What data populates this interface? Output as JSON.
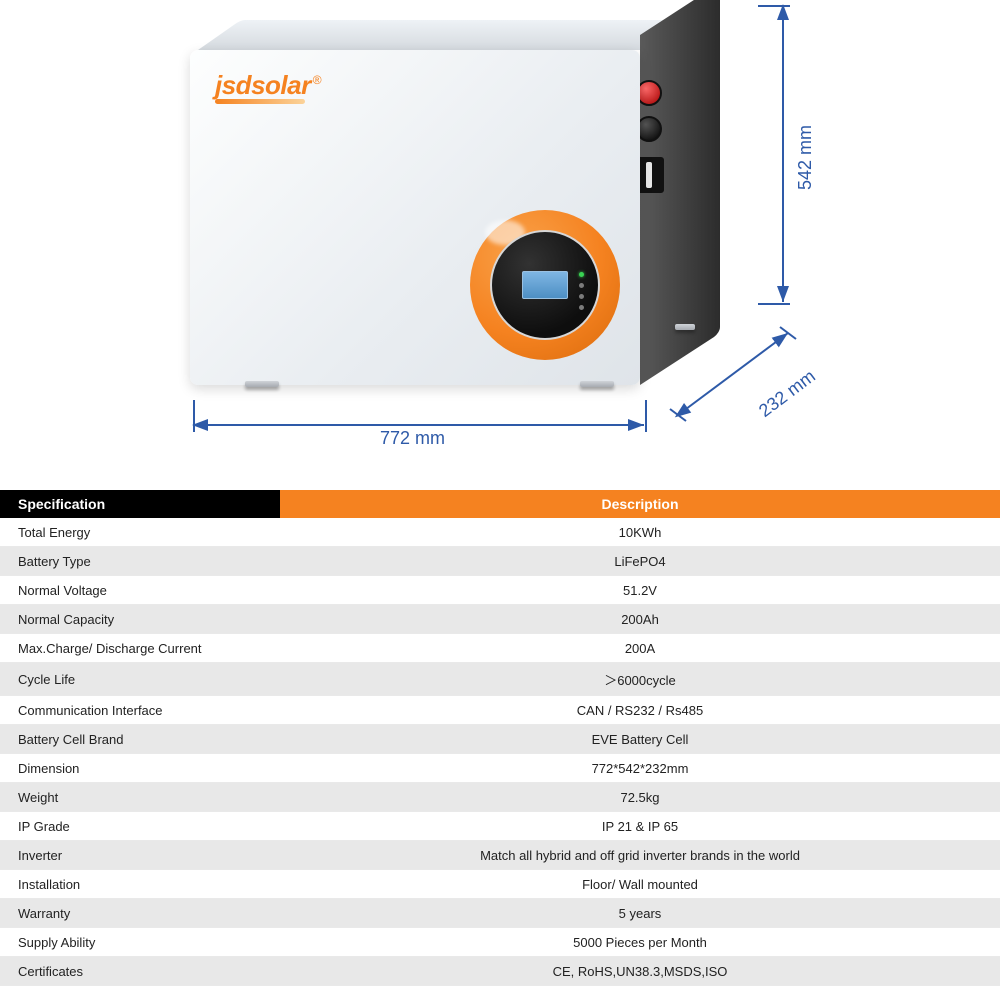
{
  "brand": {
    "name": "jsdsolar",
    "color": "#f58220"
  },
  "dimensions": {
    "width_label": "772 mm",
    "height_label": "542 mm",
    "depth_label": "232 mm",
    "line_color": "#2e5aa8",
    "text_color": "#2e5aa8"
  },
  "table": {
    "header_specification": "Specification",
    "header_description": "Description",
    "header_desc_bg": "#f58220",
    "row_bg_alt": "#e8e8e8",
    "rows": [
      {
        "k": "Total Energy",
        "v": "10KWh"
      },
      {
        "k": "Battery Type",
        "v": "LiFePO4"
      },
      {
        "k": "Normal Voltage",
        "v": "51.2V"
      },
      {
        "k": "Normal Capacity",
        "v": "200Ah"
      },
      {
        "k": "Max.Charge/ Discharge Current",
        "v": "200A"
      },
      {
        "k": "Cycle Life",
        "v": "＞6000cycle"
      },
      {
        "k": "Communication Interface",
        "v": "CAN / RS232 / Rs485"
      },
      {
        "k": "Battery Cell Brand",
        "v": "EVE Battery Cell"
      },
      {
        "k": "Dimension",
        "v": "772*542*232mm"
      },
      {
        "k": "Weight",
        "v": "72.5kg"
      },
      {
        "k": "IP Grade",
        "v": "IP 21 & IP 65"
      },
      {
        "k": "Inverter",
        "v": "Match all hybrid and off grid inverter brands in the world"
      },
      {
        "k": "Installation",
        "v": "Floor/ Wall mounted"
      },
      {
        "k": "Warranty",
        "v": "5 years"
      },
      {
        "k": "Supply Ability",
        "v": "5000 Pieces per Month"
      },
      {
        "k": "Certificates",
        "v": "CE, RoHS,UN38.3,MSDS,ISO"
      }
    ]
  }
}
